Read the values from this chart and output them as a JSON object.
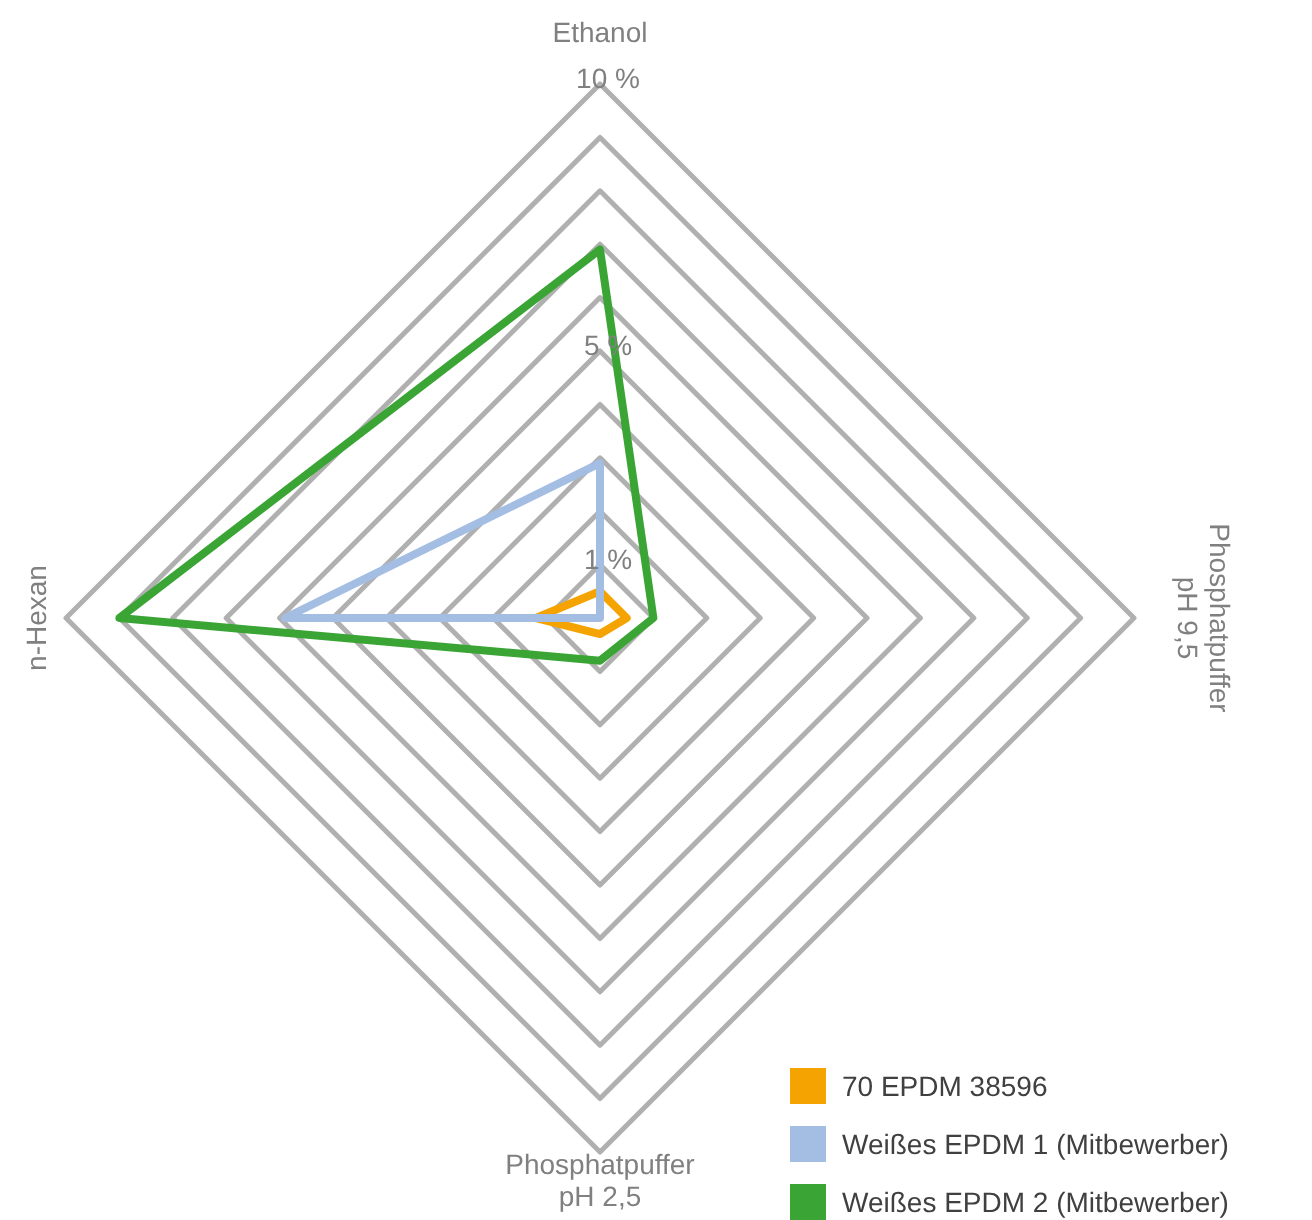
{
  "chart_data": {
    "type": "radar",
    "categories": [
      "Ethanol",
      "Phosphatpuffer\npH 9,5",
      "Phosphatpuffer\npH 2,5",
      "n-Hexan"
    ],
    "series": [
      {
        "name": "70 EPDM 38596",
        "color": "#f5a300",
        "values": [
          0.5,
          0.5,
          0.3,
          1.2
        ]
      },
      {
        "name": "Weißes EPDM 1 (Mitbewerber)",
        "color": "#a4bde3",
        "values": [
          2.9,
          0,
          0,
          5.9
        ]
      },
      {
        "name": "Weißes EPDM 2 (Mitbewerber)",
        "color": "#3aa535",
        "values": [
          6.9,
          1,
          0.8,
          9
        ]
      }
    ],
    "ylim": [
      0,
      10
    ],
    "yticks": [
      {
        "value": 1,
        "label": "1 %"
      },
      {
        "value": 5,
        "label": "5 %"
      },
      {
        "value": 10,
        "label": "10 %"
      }
    ],
    "grid": true,
    "legend": "bottom right",
    "marker": "none",
    "line_style": "solid"
  }
}
